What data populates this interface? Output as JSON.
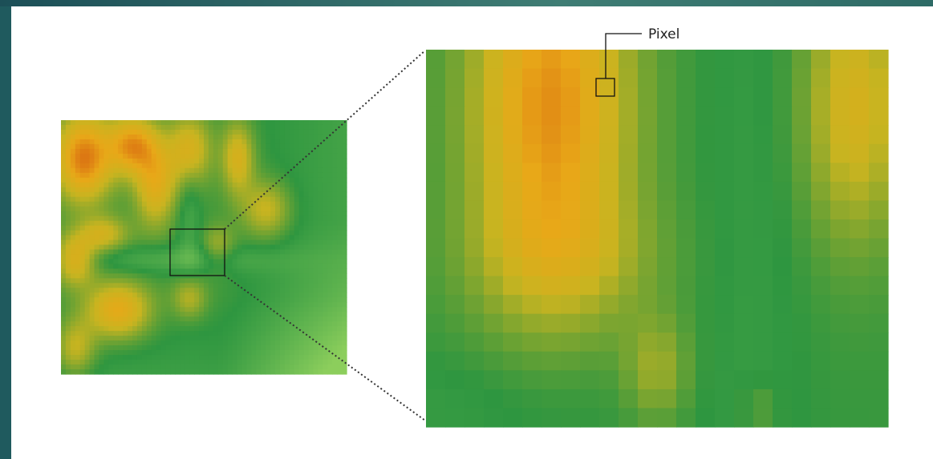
{
  "labels": {
    "pixel": "Pixel"
  }
}
